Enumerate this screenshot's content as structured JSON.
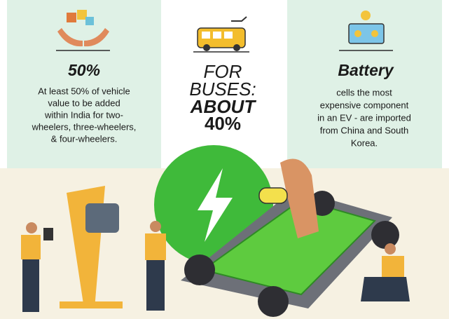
{
  "left": {
    "heading": "50%",
    "body": [
      "At least 50% of vehicle",
      "value to be added",
      "within India for two-",
      "wheelers, three-wheelers,",
      "& four-wheelers."
    ]
  },
  "middle": {
    "lines": [
      "FOR",
      "BUSES:",
      "ABOUT",
      "40%"
    ]
  },
  "right": {
    "heading": "Battery",
    "body": [
      "cells the most",
      "expensive component",
      "in an EV - are imported",
      "from China and South",
      "Korea."
    ]
  }
}
